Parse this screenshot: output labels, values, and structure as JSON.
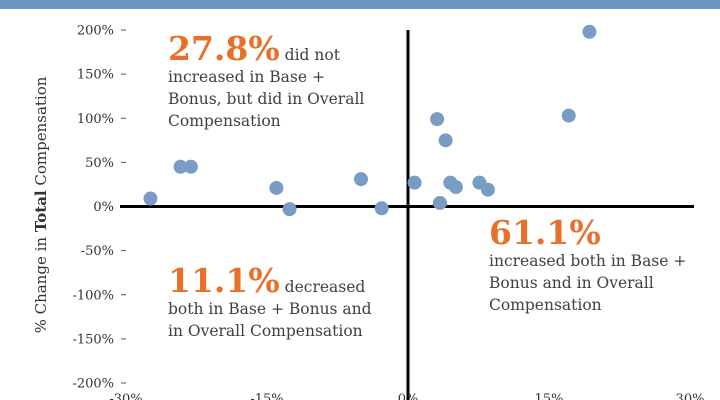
{
  "colors": {
    "banner": "#6f95c2",
    "point": "#7a9cc4",
    "accent": "#e8712a",
    "axis": "#000000",
    "text": "#404040"
  },
  "chart_data": {
    "type": "scatter",
    "title": "",
    "xlabel": "",
    "ylabel_prefix": "% Change in ",
    "ylabel_bold": "Total",
    "ylabel_suffix": " Compensation",
    "xlim": [
      -30,
      30
    ],
    "ylim": [
      -200,
      200
    ],
    "x_tick_labels": [
      "-30%",
      "-15%",
      "0%",
      "15%",
      "30%"
    ],
    "y_ticks": [
      200,
      150,
      100,
      50,
      0,
      -50,
      -100,
      -150,
      -200
    ],
    "y_tick_labels": [
      "200%",
      "150%",
      "100%",
      "50%",
      "0%",
      "-50%",
      "-100%",
      "-150%",
      "-200%"
    ],
    "grid": false,
    "points": [
      {
        "x": -27.4,
        "y": 9
      },
      {
        "x": -24.2,
        "y": 45
      },
      {
        "x": -23.1,
        "y": 45
      },
      {
        "x": -14.0,
        "y": 21
      },
      {
        "x": -12.6,
        "y": -3
      },
      {
        "x": -5.0,
        "y": 31
      },
      {
        "x": -2.8,
        "y": -2
      },
      {
        "x": 0.7,
        "y": 27
      },
      {
        "x": 3.1,
        "y": 99
      },
      {
        "x": 3.4,
        "y": 4
      },
      {
        "x": 4.0,
        "y": 75
      },
      {
        "x": 4.5,
        "y": 27
      },
      {
        "x": 5.1,
        "y": 22
      },
      {
        "x": 7.6,
        "y": 27
      },
      {
        "x": 8.5,
        "y": 19
      },
      {
        "x": 17.1,
        "y": 103
      },
      {
        "x": 19.3,
        "y": 198
      }
    ]
  },
  "annotations": {
    "top_left": {
      "pct": "27.8%",
      "text_1": "did not",
      "text_2": "increased in Base +",
      "text_3": "Bonus, but did in Overall",
      "text_4": "Compensation"
    },
    "bottom_left": {
      "pct": "11.1%",
      "text_1": "decreased",
      "text_2": "both in Base + Bonus and",
      "text_3": "in Overall Compensation"
    },
    "bottom_right": {
      "pct": "61.1%",
      "text_1": "increased both in Base +",
      "text_2": "Bonus and in Overall",
      "text_3": "Compensation"
    }
  }
}
